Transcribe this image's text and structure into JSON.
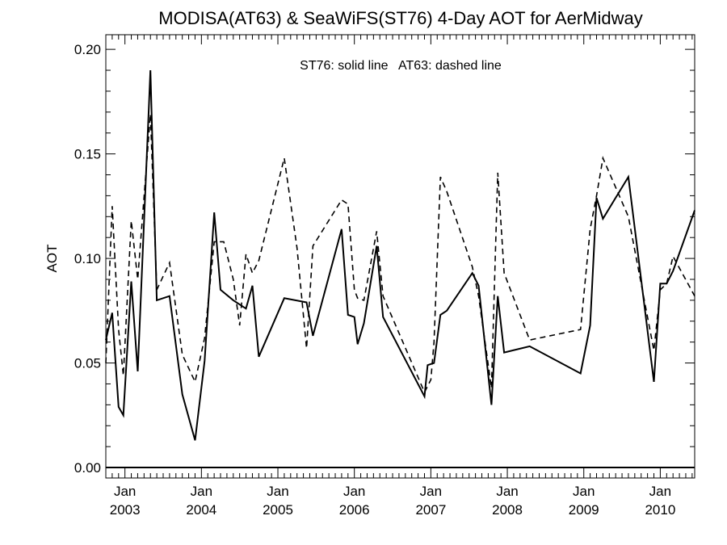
{
  "chart_data": {
    "type": "line",
    "title": "MODISA(AT63) & SeaWiFS(ST76) 4-Day AOT for AerMidway",
    "ylabel": "AOT",
    "xlabel": "",
    "legend_text": "ST76: solid line   AT63: dashed line",
    "xlim": [
      2002.75,
      2010.45
    ],
    "ylim": [
      -0.005,
      0.207
    ],
    "yticks": [
      {
        "value": 0.0,
        "label": "0.00"
      },
      {
        "value": 0.05,
        "label": "0.05"
      },
      {
        "value": 0.1,
        "label": "0.10"
      },
      {
        "value": 0.15,
        "label": "0.15"
      },
      {
        "value": 0.2,
        "label": "0.20"
      }
    ],
    "xticks": [
      {
        "value": 2003.0,
        "month": "Jan",
        "year": "2003"
      },
      {
        "value": 2004.0,
        "month": "Jan",
        "year": "2004"
      },
      {
        "value": 2005.0,
        "month": "Jan",
        "year": "2005"
      },
      {
        "value": 2006.0,
        "month": "Jan",
        "year": "2006"
      },
      {
        "value": 2007.0,
        "month": "Jan",
        "year": "2007"
      },
      {
        "value": 2008.0,
        "month": "Jan",
        "year": "2008"
      },
      {
        "value": 2009.0,
        "month": "Jan",
        "year": "2009"
      },
      {
        "value": 2010.0,
        "month": "Jan",
        "year": "2010"
      }
    ],
    "series": [
      {
        "name": "ST76",
        "style": "solid",
        "color": "#000000",
        "x": [
          2002.75,
          2002.833,
          2002.917,
          2002.979,
          2003.083,
          2003.167,
          2003.333,
          2003.417,
          2003.583,
          2003.75,
          2003.917,
          2004.042,
          2004.167,
          2004.25,
          2004.417,
          2004.583,
          2004.667,
          2004.75,
          2005.083,
          2005.375,
          2005.458,
          2005.833,
          2005.917,
          2006.0,
          2006.042,
          2006.125,
          2006.292,
          2006.375,
          2006.917,
          2006.958,
          2007.042,
          2007.125,
          2007.208,
          2007.542,
          2007.625,
          2007.792,
          2007.875,
          2007.958,
          2008.292,
          2008.958,
          2009.083,
          2009.167,
          2009.25,
          2009.583,
          2009.917,
          2010.0,
          2010.083,
          2010.167,
          2010.45
        ],
        "y": [
          0.061,
          0.074,
          0.029,
          0.025,
          0.089,
          0.046,
          0.19,
          0.08,
          0.082,
          0.035,
          0.013,
          0.051,
          0.122,
          0.085,
          0.08,
          0.076,
          0.087,
          0.053,
          0.081,
          0.079,
          0.063,
          0.114,
          0.073,
          0.072,
          0.059,
          0.069,
          0.106,
          0.072,
          0.034,
          0.049,
          0.05,
          0.073,
          0.075,
          0.093,
          0.087,
          0.03,
          0.082,
          0.055,
          0.058,
          0.045,
          0.068,
          0.129,
          0.119,
          0.139,
          0.041,
          0.088,
          0.088,
          0.094,
          0.123
        ]
      },
      {
        "name": "AT63",
        "style": "dashed",
        "color": "#000000",
        "x": [
          2002.75,
          2002.833,
          2002.917,
          2002.979,
          2003.083,
          2003.167,
          2003.333,
          2003.417,
          2003.583,
          2003.75,
          2003.917,
          2004.042,
          2004.167,
          2004.292,
          2004.417,
          2004.5,
          2004.583,
          2004.667,
          2004.75,
          2005.083,
          2005.25,
          2005.375,
          2005.458,
          2005.833,
          2005.917,
          2006.0,
          2006.042,
          2006.125,
          2006.292,
          2006.375,
          2006.917,
          2007.0,
          2007.042,
          2007.125,
          2007.208,
          2007.542,
          2007.625,
          2007.792,
          2007.875,
          2007.958,
          2008.292,
          2008.958,
          2009.083,
          2009.167,
          2009.25,
          2009.583,
          2009.917,
          2010.0,
          2010.083,
          2010.167,
          2010.45
        ],
        "y": [
          0.05,
          0.125,
          0.066,
          0.044,
          0.118,
          0.09,
          0.169,
          0.085,
          0.098,
          0.054,
          0.041,
          0.062,
          0.108,
          0.108,
          0.09,
          0.068,
          0.102,
          0.093,
          0.099,
          0.148,
          0.105,
          0.057,
          0.106,
          0.128,
          0.126,
          0.085,
          0.081,
          0.08,
          0.113,
          0.082,
          0.036,
          0.042,
          0.06,
          0.139,
          0.132,
          0.096,
          0.082,
          0.038,
          0.141,
          0.093,
          0.061,
          0.066,
          0.114,
          0.13,
          0.148,
          0.12,
          0.056,
          0.085,
          0.088,
          0.101,
          0.082
        ]
      }
    ],
    "grid": false,
    "legend_position": "top-center"
  }
}
